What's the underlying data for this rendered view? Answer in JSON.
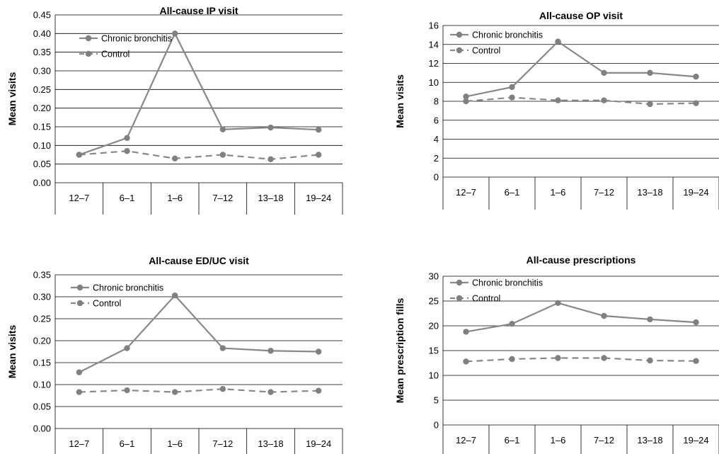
{
  "chart_data": [
    {
      "type": "line",
      "title": "All-cause IP visit",
      "xlabel": "",
      "ylabel": "Mean visits",
      "categories": [
        "12–7",
        "6–1",
        "1–6",
        "7–12",
        "13–18",
        "19–24"
      ],
      "ylim": [
        0,
        0.45
      ],
      "yticks": [
        "0.00",
        "0.05",
        "0.10",
        "0.15",
        "0.20",
        "0.25",
        "0.30",
        "0.35",
        "0.40",
        "0.45"
      ],
      "grid": true,
      "legend": "top-left",
      "series": [
        {
          "name": "Chronic bronchitis",
          "values": [
            0.075,
            0.12,
            0.4,
            0.143,
            0.148,
            0.142
          ],
          "dashed": false
        },
        {
          "name": "Control",
          "values": [
            0.075,
            0.085,
            0.065,
            0.075,
            0.063,
            0.075
          ],
          "dashed": true
        }
      ]
    },
    {
      "type": "line",
      "title": "All-cause OP visit",
      "xlabel": "",
      "ylabel": "Mean visits",
      "categories": [
        "12–7",
        "6–1",
        "1–6",
        "7–12",
        "13–18",
        "19–24"
      ],
      "ylim": [
        0,
        16
      ],
      "yticks": [
        "0",
        "2",
        "4",
        "6",
        "8",
        "10",
        "12",
        "14",
        "16"
      ],
      "grid": true,
      "legend": "top-left",
      "series": [
        {
          "name": "Chronic bronchitis",
          "values": [
            8.5,
            9.5,
            14.3,
            11.0,
            11.0,
            10.6
          ],
          "dashed": false
        },
        {
          "name": "Control",
          "values": [
            8.0,
            8.4,
            8.1,
            8.1,
            7.7,
            7.8
          ],
          "dashed": true
        }
      ]
    },
    {
      "type": "line",
      "title": "All-cause ED/UC visit",
      "xlabel": "",
      "ylabel": "Mean visits",
      "categories": [
        "12–7",
        "6–1",
        "1–6",
        "7–12",
        "13–18",
        "19–24"
      ],
      "ylim": [
        0,
        0.35
      ],
      "yticks": [
        "0.00",
        "0.05",
        "0.10",
        "0.15",
        "0.20",
        "0.25",
        "0.30",
        "0.35"
      ],
      "grid": true,
      "legend": "top-left",
      "series": [
        {
          "name": "Chronic bronchitis",
          "values": [
            0.128,
            0.183,
            0.303,
            0.183,
            0.177,
            0.175
          ],
          "dashed": false
        },
        {
          "name": "Control",
          "values": [
            0.083,
            0.087,
            0.083,
            0.09,
            0.083,
            0.086
          ],
          "dashed": true
        }
      ]
    },
    {
      "type": "line",
      "title": "All-cause prescriptions",
      "xlabel": "",
      "ylabel": "Mean prescription fills",
      "categories": [
        "12–7",
        "6–1",
        "1–6",
        "7–12",
        "13–18",
        "19–24"
      ],
      "ylim": [
        0,
        30
      ],
      "yticks": [
        "0",
        "5",
        "10",
        "15",
        "20",
        "25",
        "30"
      ],
      "grid": true,
      "legend": "top-left",
      "series": [
        {
          "name": "Chronic bronchitis",
          "values": [
            18.8,
            20.4,
            24.6,
            22.0,
            21.3,
            20.7
          ],
          "dashed": false
        },
        {
          "name": "Control",
          "values": [
            12.8,
            13.3,
            13.5,
            13.5,
            13.0,
            12.9
          ],
          "dashed": true
        }
      ]
    }
  ],
  "colors": {
    "line": "#888888",
    "marker": "#808080",
    "grid": "#000000",
    "text": "#000000"
  }
}
